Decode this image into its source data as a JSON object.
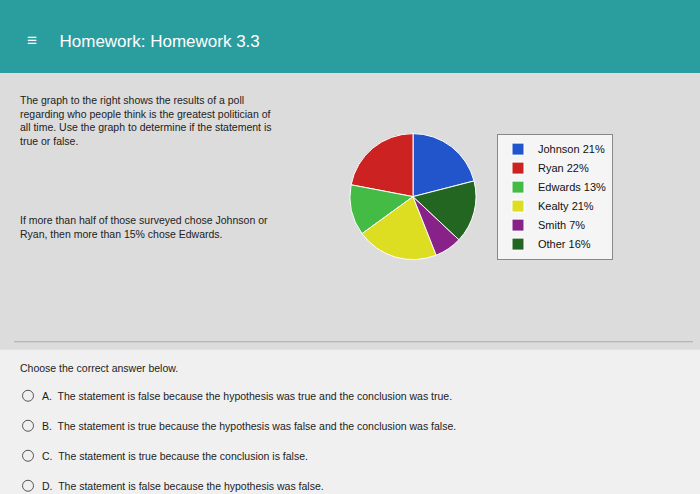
{
  "chart_data": {
    "type": "pie",
    "title": "Homework: Homework 3.3",
    "annotations": [
      "≡",
      "The graph to the right shows the results of a poll\nregarding who people think is the greatest politician of\nall time. Use the graph to determine if the statement is\ntrue or false.",
      "If more than half of those surveyed chose Johnson or\nRyan, then more than 15% chose Edwards.",
      "Choose the correct answer below.",
      "A.  The statement is false because the hypothesis was true and the conclusion was true.",
      "B.  The statement is true because the hypothesis was false and the conclusion was false.",
      "C.  The statement is true because the conclusion is false.",
      "D.  The statement is false because the hypothesis was false."
    ],
    "categories": [
      "Johnson 21%",
      "Ryan 22%",
      "Edwards 13%",
      "Kealty 21%",
      "Smith 7%",
      "Other 16%"
    ],
    "values": [
      21,
      22,
      13,
      21,
      7,
      16
    ],
    "colors": [
      "#2255cc",
      "#cc2222",
      "#44bb44",
      "#dddd22",
      "#882288",
      "#226622"
    ],
    "legend": "right"
  }
}
